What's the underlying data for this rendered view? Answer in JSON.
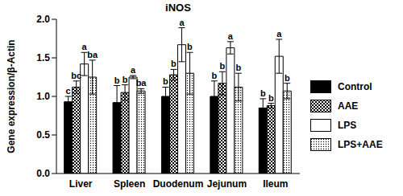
{
  "chart_data": {
    "type": "bar",
    "title": "iNOS",
    "y_label": "Gene expression/β-Actin",
    "categories": [
      "Liver",
      "Spleen",
      "Duodenum",
      "Jejunum",
      "Ileum"
    ],
    "ylim": [
      0,
      2
    ],
    "yticks": [
      {
        "value": 0,
        "label": "0.0"
      },
      {
        "value": 0.5,
        "label": "0.5"
      },
      {
        "value": 1,
        "label": "1.0"
      },
      {
        "value": 1.5,
        "label": "1.5"
      },
      {
        "value": 2,
        "label": "2.0"
      }
    ],
    "legend": "right",
    "series": [
      {
        "name": "Control",
        "color": "#000000",
        "values": [
          0.93,
          0.92,
          1.0,
          1.0,
          0.85
        ],
        "errors": [
          0.07,
          0.22,
          0.12,
          0.2,
          0.12
        ],
        "letters": [
          "c",
          "b",
          "b",
          "b",
          "b"
        ]
      },
      {
        "name": "AAE",
        "color": "#000000",
        "values": [
          1.12,
          1.05,
          1.28,
          1.17,
          0.88
        ],
        "errors": [
          0.08,
          0.1,
          0.07,
          0.15,
          0.03
        ],
        "letters": [
          "bc",
          "b",
          "b",
          "b",
          "b"
        ]
      },
      {
        "name": "LPS",
        "color": "#ffffff",
        "values": [
          1.42,
          1.25,
          1.67,
          1.63,
          1.52
        ],
        "errors": [
          0.15,
          0.02,
          0.22,
          0.08,
          0.22
        ],
        "letters": [
          "a",
          "a",
          "a",
          "a",
          "a"
        ]
      },
      {
        "name": "LPS+AAE",
        "color": "#000000",
        "values": [
          1.25,
          1.07,
          1.3,
          1.12,
          1.07
        ],
        "errors": [
          0.22,
          0.03,
          0.27,
          0.18,
          0.1
        ],
        "letters": [
          "ba",
          "ba",
          "b",
          "b",
          "b"
        ]
      }
    ]
  }
}
